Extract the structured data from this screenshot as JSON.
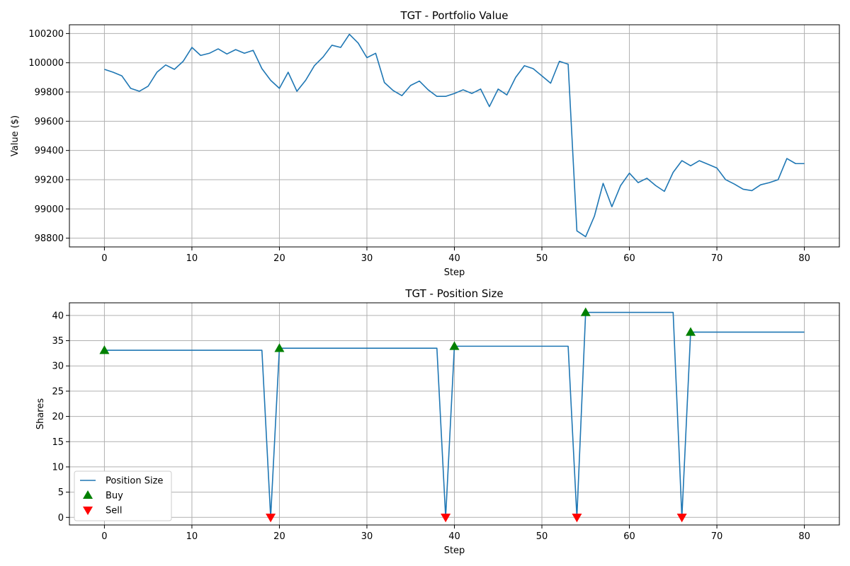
{
  "chart_data": [
    {
      "type": "line",
      "title": "TGT - Portfolio Value",
      "xlabel": "Step",
      "ylabel": "Value ($)",
      "xlim": [
        -4,
        84
      ],
      "ylim": [
        98740,
        100260
      ],
      "xticks": [
        0,
        10,
        20,
        30,
        40,
        50,
        60,
        70,
        80
      ],
      "yticks": [
        98800,
        99000,
        99200,
        99400,
        99600,
        99800,
        100000,
        100200
      ],
      "grid": true,
      "series": [
        {
          "color": "#1f77b4",
          "x": [
            0,
            1,
            2,
            3,
            4,
            5,
            6,
            7,
            8,
            9,
            10,
            11,
            12,
            13,
            14,
            15,
            16,
            17,
            18,
            19,
            20,
            21,
            22,
            23,
            24,
            25,
            26,
            27,
            28,
            29,
            30,
            31,
            32,
            33,
            34,
            35,
            36,
            37,
            38,
            39,
            40,
            41,
            42,
            43,
            44,
            45,
            46,
            47,
            48,
            49,
            50,
            51,
            52,
            53,
            54,
            55,
            56,
            57,
            58,
            59,
            60,
            61,
            62,
            63,
            64,
            65,
            66,
            67,
            68,
            69,
            70,
            71,
            72,
            73,
            74,
            75,
            76,
            77,
            78,
            79,
            80
          ],
          "values": [
            99955,
            99935,
            99910,
            99825,
            99805,
            99840,
            99935,
            99985,
            99955,
            100010,
            100105,
            100050,
            100065,
            100095,
            100060,
            100090,
            100065,
            100085,
            99960,
            99880,
            99825,
            99935,
            99805,
            99880,
            99980,
            100040,
            100120,
            100105,
            100195,
            100135,
            100035,
            100065,
            99865,
            99810,
            99775,
            99845,
            99875,
            99815,
            99770,
            99770,
            99790,
            99815,
            99790,
            99820,
            99700,
            99820,
            99780,
            99900,
            99980,
            99960,
            99910,
            99860,
            100010,
            99990,
            98850,
            98810,
            98950,
            99175,
            99015,
            99160,
            99245,
            99180,
            99210,
            99160,
            99120,
            99250,
            99330,
            99295,
            99330,
            99305,
            99280,
            99200,
            99170,
            99135,
            99125,
            99165,
            99180,
            99200,
            99345,
            99310,
            99310
          ]
        }
      ]
    },
    {
      "type": "line",
      "title": "TGT - Position Size",
      "xlabel": "Step",
      "ylabel": "Shares",
      "xlim": [
        -4,
        84
      ],
      "ylim": [
        -1.5,
        42.5
      ],
      "xticks": [
        0,
        10,
        20,
        30,
        40,
        50,
        60,
        70,
        80
      ],
      "yticks": [
        0,
        5,
        10,
        15,
        20,
        25,
        30,
        35,
        40
      ],
      "grid": true,
      "legend_position": "lower-left",
      "series": [
        {
          "name": "Position Size",
          "color": "#1f77b4",
          "x": [
            0,
            18,
            19,
            20,
            38,
            39,
            40,
            53,
            54,
            55,
            65,
            66,
            67,
            80
          ],
          "values": [
            33.1,
            33.1,
            0,
            33.5,
            33.5,
            0,
            33.9,
            33.9,
            0,
            40.6,
            40.6,
            0,
            36.7,
            36.7
          ]
        }
      ],
      "markers": [
        {
          "name": "Buy",
          "shape": "triangle-up",
          "color": "#008000",
          "x": [
            0,
            20,
            40,
            55,
            67
          ],
          "values": [
            33.1,
            33.5,
            33.9,
            40.6,
            36.7
          ]
        },
        {
          "name": "Sell",
          "shape": "triangle-down",
          "color": "#ff0000",
          "x": [
            19,
            39,
            54,
            66
          ],
          "values": [
            0,
            0,
            0,
            0
          ]
        }
      ]
    }
  ]
}
